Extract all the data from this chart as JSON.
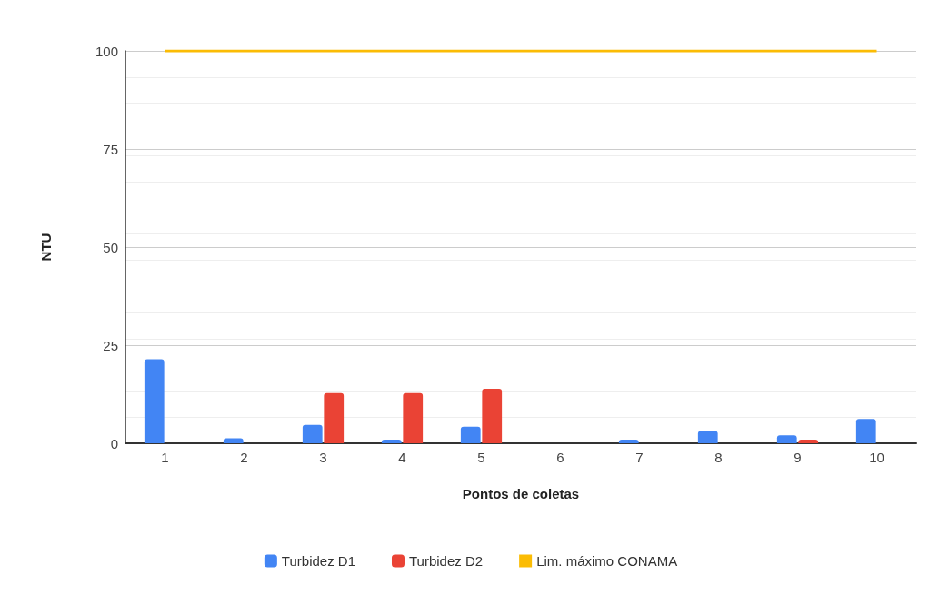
{
  "chart_data": {
    "type": "bar",
    "xlabel": "Pontos de coletas",
    "ylabel": "NTU",
    "categories": [
      "1",
      "2",
      "3",
      "4",
      "5",
      "6",
      "7",
      "8",
      "9",
      "10"
    ],
    "series": [
      {
        "name": "Turbidez D1",
        "color": "#4285f4",
        "values": [
          21.4,
          1.3,
          4.7,
          0.9,
          4.2,
          0,
          0.9,
          3.1,
          2.0,
          6.2
        ]
      },
      {
        "name": "Turbidez D2",
        "color": "#ea4335",
        "values": [
          0,
          0,
          12.8,
          12.8,
          13.9,
          0,
          0,
          0,
          0.9,
          0
        ]
      },
      {
        "name": "Lim. máximo CONAMA",
        "type": "line",
        "marker": "none",
        "color": "#fbbc04",
        "values": [
          100,
          100,
          100,
          100,
          100,
          100,
          100,
          100,
          100,
          100
        ]
      }
    ],
    "ylim": [
      0,
      100
    ],
    "yticks": [
      0,
      25,
      50,
      75,
      100
    ],
    "grid": "y",
    "legend": "bottom"
  }
}
